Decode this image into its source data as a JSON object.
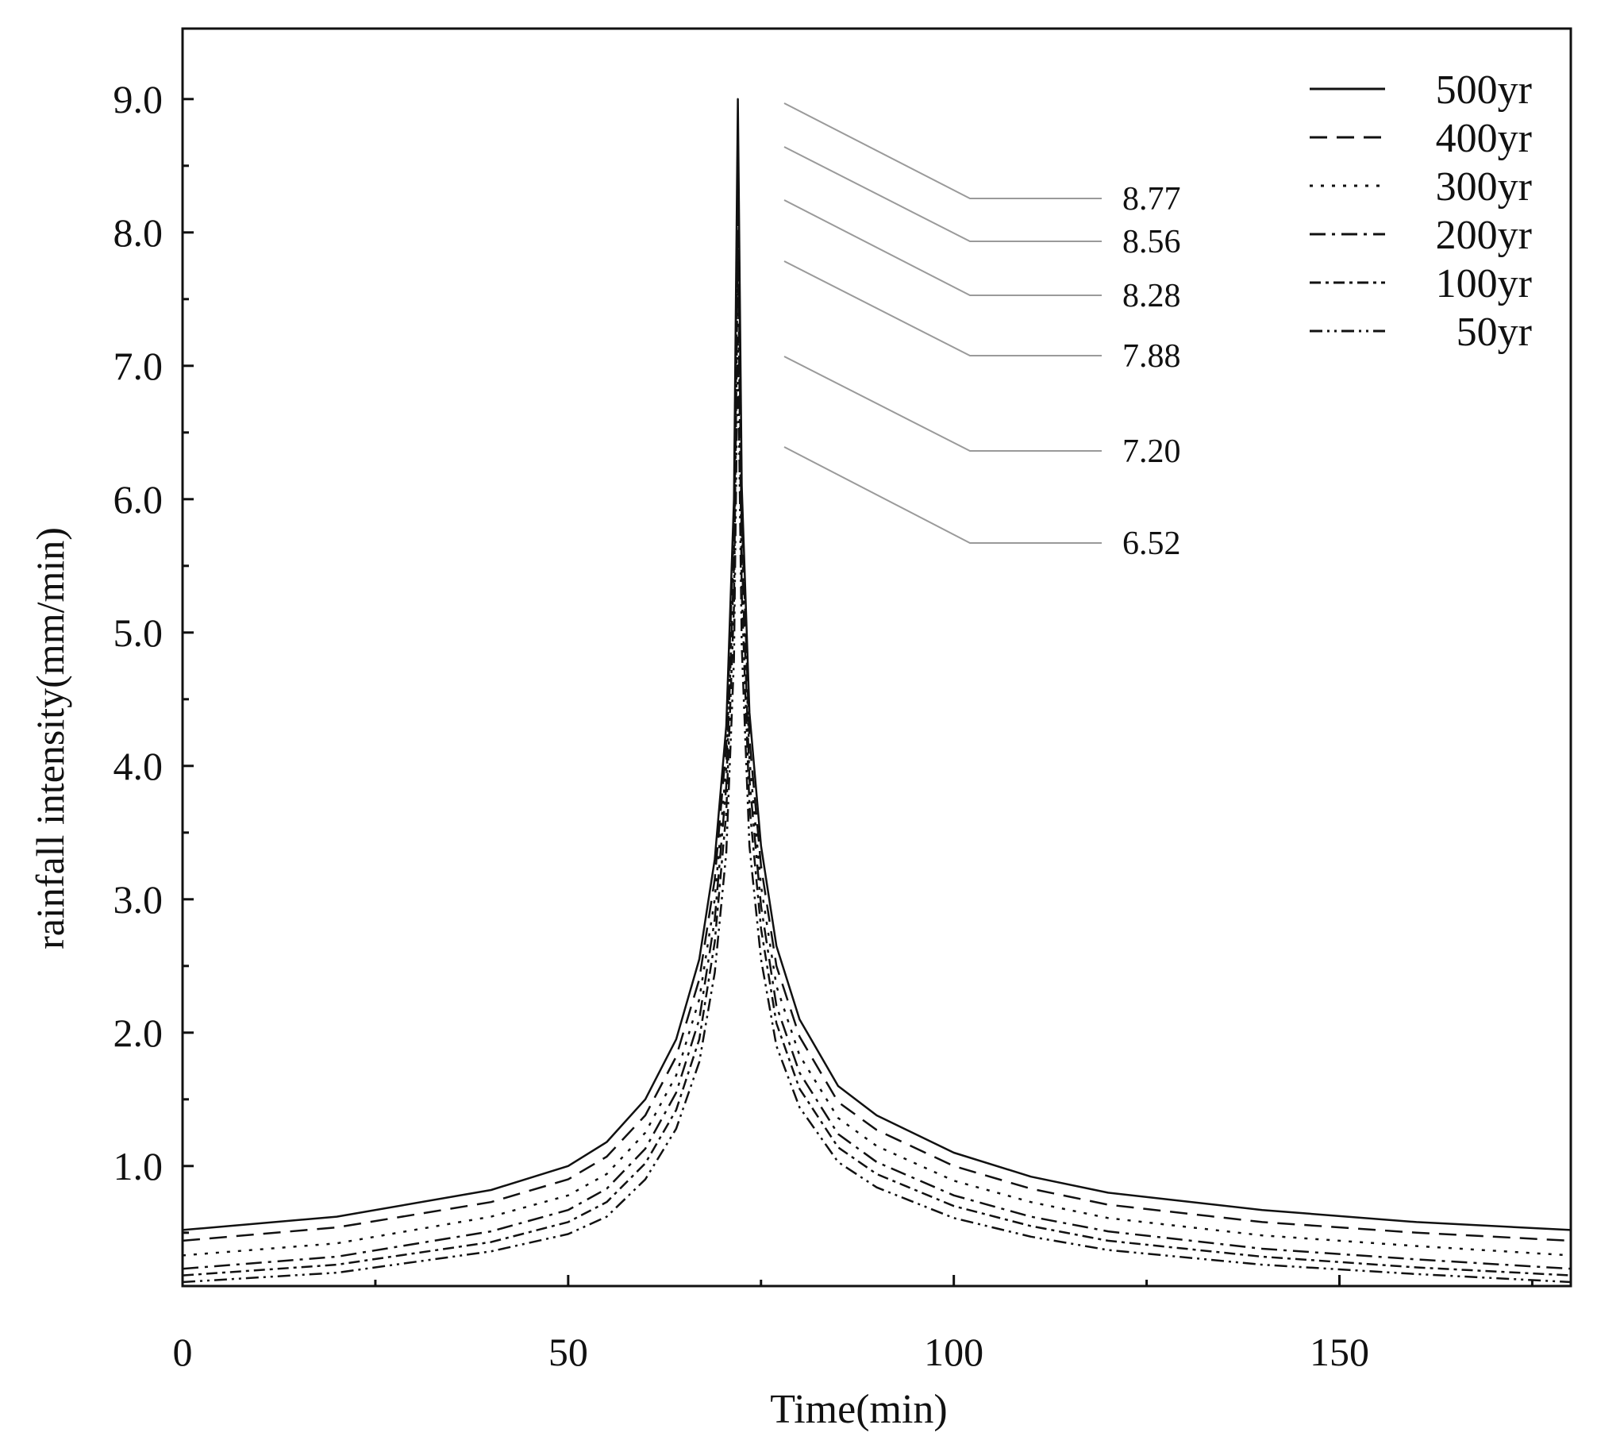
{
  "chart_data": {
    "type": "line",
    "title": "",
    "xlabel": "Time(min)",
    "ylabel": "rainfall intensity(mm/min)",
    "xlim": [
      0,
      180
    ],
    "ylim": [
      0.1,
      9.5
    ],
    "grid": false,
    "legend_position": "top-right",
    "x_ticks": [
      {
        "value": 0,
        "label": "0"
      },
      {
        "value": 50,
        "label": "50"
      },
      {
        "value": 100,
        "label": "100"
      },
      {
        "value": 150,
        "label": "150"
      }
    ],
    "y_ticks": [
      {
        "value": 1.0,
        "label": "1.0"
      },
      {
        "value": 2.0,
        "label": "2.0"
      },
      {
        "value": 3.0,
        "label": "3.0"
      },
      {
        "value": 4.0,
        "label": "4.0"
      },
      {
        "value": 5.0,
        "label": "5.0"
      },
      {
        "value": 6.0,
        "label": "6.0"
      },
      {
        "value": 7.0,
        "label": "7.0"
      },
      {
        "value": 8.0,
        "label": "8.0"
      },
      {
        "value": 9.0,
        "label": "9.0"
      }
    ],
    "peak_time": 72,
    "series": [
      {
        "name": "500yr",
        "style": "solid",
        "peak": 9.0,
        "x": [
          0,
          20,
          40,
          50,
          55,
          60,
          64,
          67,
          69,
          70.5,
          71.5,
          72,
          72.5,
          73.5,
          75,
          77,
          80,
          85,
          90,
          100,
          110,
          120,
          140,
          160,
          180
        ],
        "y": [
          0.52,
          0.62,
          0.82,
          1.0,
          1.18,
          1.5,
          1.95,
          2.55,
          3.3,
          4.3,
          6.0,
          9.0,
          6.1,
          4.4,
          3.4,
          2.65,
          2.1,
          1.6,
          1.38,
          1.1,
          0.92,
          0.8,
          0.67,
          0.58,
          0.52
        ]
      },
      {
        "name": "400yr",
        "style": "dash",
        "peak": 8.77,
        "x": [
          0,
          20,
          40,
          50,
          55,
          60,
          64,
          67,
          69,
          70.5,
          71.5,
          72,
          72.5,
          73.5,
          75,
          77,
          80,
          85,
          90,
          100,
          110,
          120,
          140,
          160,
          180
        ],
        "y": [
          0.44,
          0.54,
          0.73,
          0.9,
          1.07,
          1.38,
          1.82,
          2.4,
          3.15,
          4.15,
          5.8,
          8.77,
          5.9,
          4.2,
          3.25,
          2.5,
          1.97,
          1.48,
          1.27,
          1.0,
          0.83,
          0.71,
          0.58,
          0.5,
          0.44
        ]
      },
      {
        "name": "300yr",
        "style": "dot",
        "peak": 8.56,
        "x": [
          0,
          20,
          40,
          50,
          55,
          60,
          64,
          67,
          69,
          70.5,
          71.5,
          72,
          72.5,
          73.5,
          75,
          77,
          80,
          85,
          90,
          100,
          110,
          120,
          140,
          160,
          180
        ],
        "y": [
          0.33,
          0.42,
          0.62,
          0.78,
          0.94,
          1.25,
          1.68,
          2.25,
          3.0,
          4.0,
          5.65,
          8.56,
          5.75,
          4.05,
          3.1,
          2.35,
          1.83,
          1.36,
          1.15,
          0.89,
          0.73,
          0.61,
          0.48,
          0.4,
          0.33
        ]
      },
      {
        "name": "200yr",
        "style": "dashdot",
        "peak": 8.28,
        "x": [
          0,
          20,
          40,
          50,
          55,
          60,
          64,
          67,
          69,
          70.5,
          71.5,
          72,
          72.5,
          73.5,
          75,
          77,
          80,
          85,
          90,
          100,
          110,
          120,
          140,
          160,
          180
        ],
        "y": [
          0.23,
          0.32,
          0.51,
          0.67,
          0.83,
          1.13,
          1.55,
          2.1,
          2.85,
          3.85,
          5.5,
          8.28,
          5.6,
          3.9,
          2.95,
          2.2,
          1.7,
          1.24,
          1.03,
          0.78,
          0.62,
          0.51,
          0.38,
          0.3,
          0.23
        ]
      },
      {
        "name": "100yr",
        "style": "dash-tick",
        "peak": 7.88,
        "x": [
          0,
          20,
          40,
          50,
          55,
          60,
          64,
          67,
          69,
          70.5,
          71.5,
          72,
          72.5,
          73.5,
          75,
          77,
          80,
          85,
          90,
          100,
          110,
          120,
          140,
          160,
          180
        ],
        "y": [
          0.18,
          0.26,
          0.43,
          0.58,
          0.73,
          1.02,
          1.42,
          1.95,
          2.68,
          3.65,
          5.2,
          7.88,
          5.3,
          3.7,
          2.78,
          2.07,
          1.58,
          1.14,
          0.94,
          0.7,
          0.55,
          0.44,
          0.32,
          0.24,
          0.18
        ]
      },
      {
        "name": "50yr",
        "style": "dashdotdot",
        "peak": 7.2,
        "x": [
          0,
          20,
          40,
          50,
          55,
          60,
          64,
          67,
          69,
          70.5,
          71.5,
          72,
          72.5,
          73.5,
          75,
          77,
          80,
          85,
          90,
          100,
          110,
          120,
          140,
          160,
          180
        ],
        "y": [
          0.13,
          0.2,
          0.36,
          0.49,
          0.62,
          0.9,
          1.28,
          1.78,
          2.45,
          3.35,
          4.8,
          7.2,
          4.9,
          3.4,
          2.55,
          1.9,
          1.44,
          1.03,
          0.84,
          0.61,
          0.47,
          0.37,
          0.26,
          0.19,
          0.13
        ]
      }
    ],
    "annotations": [
      {
        "label": "8.77",
        "series": "400yr"
      },
      {
        "label": "8.56",
        "series": "300yr"
      },
      {
        "label": "8.28",
        "series": "200yr"
      },
      {
        "label": "7.88",
        "series": "100yr"
      },
      {
        "label": "7.20",
        "series": "50yr"
      },
      {
        "label": "6.52",
        "series": "extra"
      }
    ]
  }
}
